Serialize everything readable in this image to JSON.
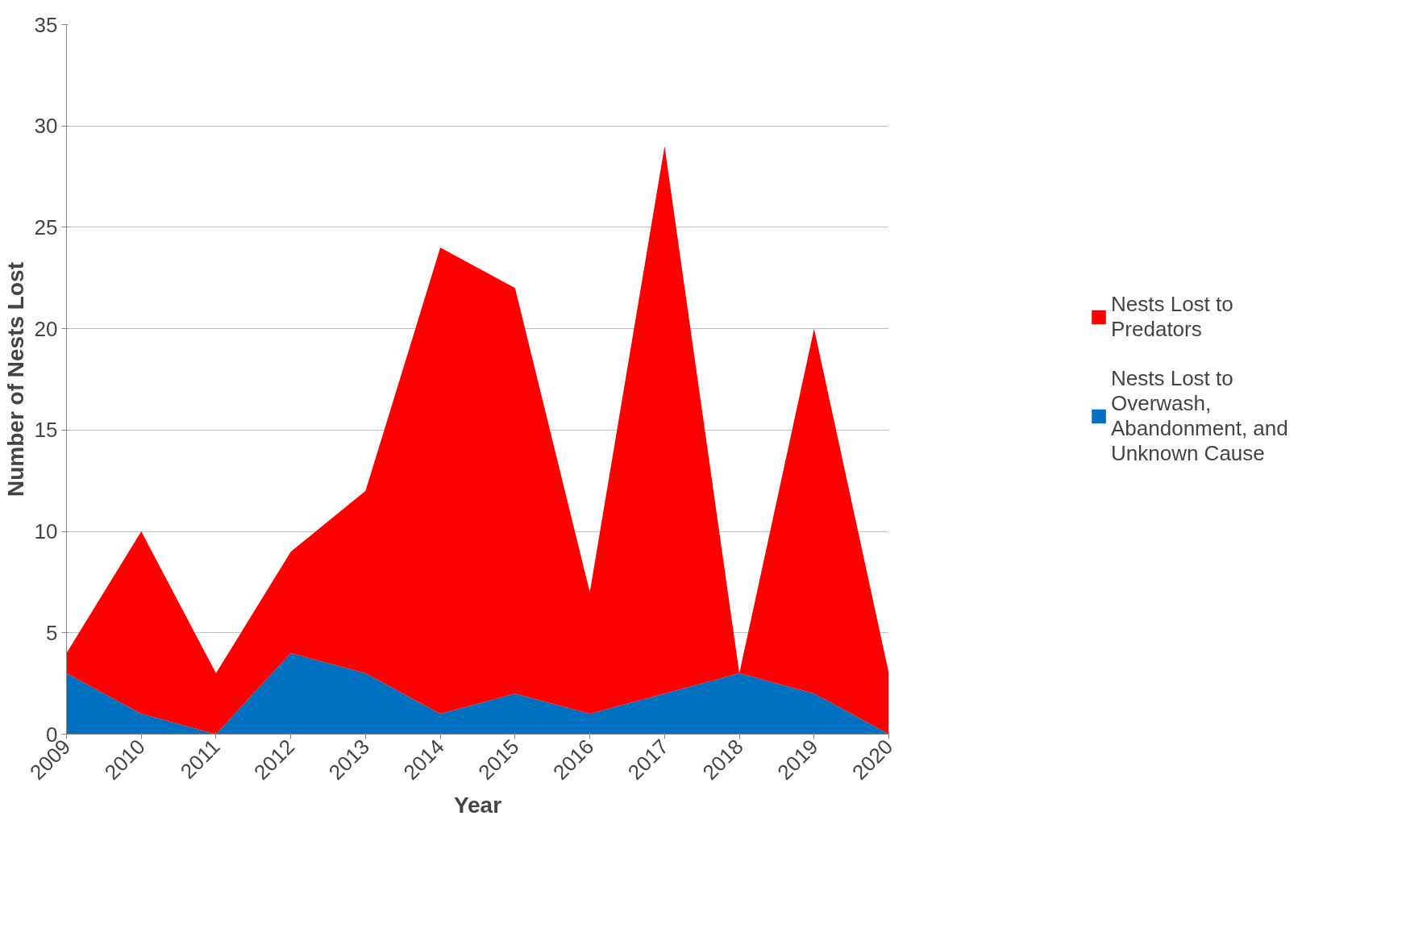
{
  "chart_data": {
    "type": "area",
    "stacked": true,
    "xlabel": "Year",
    "ylabel": "Number of Nests Lost",
    "categories": [
      "2009",
      "2010",
      "2011",
      "2012",
      "2013",
      "2014",
      "2015",
      "2016",
      "2017",
      "2018",
      "2019",
      "2020"
    ],
    "series": [
      {
        "name": "Nests Lost to Overwash, Abandonment, and Unknown Cause",
        "color": "#0070c0",
        "values": [
          3,
          1,
          0,
          4,
          3,
          1,
          2,
          1,
          2,
          3,
          2,
          0
        ]
      },
      {
        "name": "Nests Lost to Predators",
        "color": "#ff0000",
        "values": [
          1,
          9,
          3,
          5,
          9,
          23,
          20,
          6,
          27,
          0,
          18,
          3
        ]
      }
    ],
    "ylim": [
      0,
      35
    ],
    "yticks": [
      0,
      5,
      10,
      15,
      20,
      25,
      30,
      35
    ],
    "grid": "y",
    "legend": "right"
  }
}
